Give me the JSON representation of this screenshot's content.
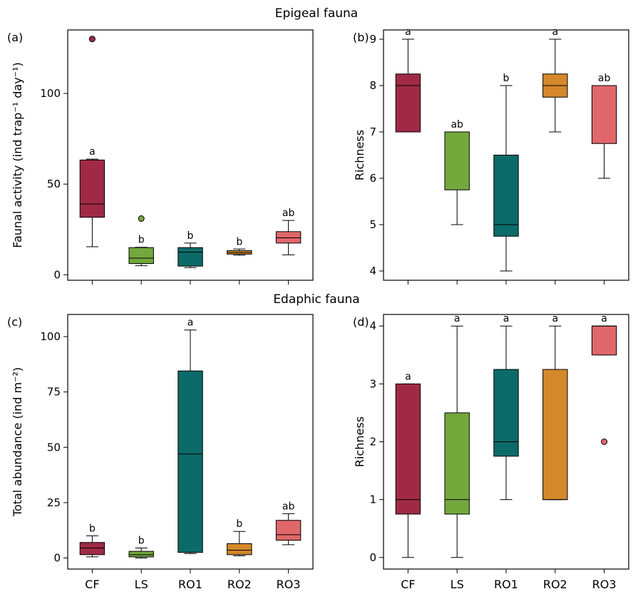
{
  "sections": {
    "epigeal_title": "Epigeal fauna",
    "edaphic_title": "Edaphic fauna"
  },
  "categories": [
    "CF",
    "LS",
    "RO1",
    "RO2",
    "RO3"
  ],
  "colors": {
    "CF": "#a02a45",
    "LS": "#73a83d",
    "RO1": "#0b6b68",
    "RO2": "#d4882a",
    "RO3": "#e0676a"
  },
  "chart_data": [
    {
      "type": "box",
      "panel_label": "(a)",
      "ylabel": "Faunal activity (ind trap⁻¹ day⁻¹)",
      "ylim": [
        -3,
        135
      ],
      "yticks": [
        0,
        50,
        100
      ],
      "categories": [
        "CF",
        "LS",
        "RO1",
        "RO2",
        "RO3"
      ],
      "boxes": [
        {
          "cat": "CF",
          "whisker_low": 15.5,
          "q1": 31.7,
          "median": 39,
          "q3": 63.3,
          "whisker_high": 63.8,
          "outliers": [
            130
          ],
          "letter": "a"
        },
        {
          "cat": "LS",
          "whisker_low": 5,
          "q1": 6.2,
          "median": 9.2,
          "q3": 15,
          "whisker_high": 15.2,
          "outliers": [
            31
          ],
          "letter": "b"
        },
        {
          "cat": "RO1",
          "whisker_low": 4,
          "q1": 4.8,
          "median": 12.5,
          "q3": 15,
          "whisker_high": 17.5,
          "outliers": [],
          "letter": "b"
        },
        {
          "cat": "RO2",
          "whisker_low": 10.8,
          "q1": 11.4,
          "median": 12.3,
          "q3": 13.3,
          "whisker_high": 14.2,
          "outliers": [],
          "letter": "b"
        },
        {
          "cat": "RO3",
          "whisker_low": 11,
          "q1": 17.5,
          "median": 20.4,
          "q3": 23.8,
          "whisker_high": 30,
          "outliers": [],
          "letter": "ab"
        }
      ]
    },
    {
      "type": "box",
      "panel_label": "(b)",
      "ylabel": "Richness",
      "ylim": [
        3.8,
        9.2
      ],
      "yticks": [
        4,
        5,
        6,
        7,
        8,
        9
      ],
      "categories": [
        "CF",
        "LS",
        "RO1",
        "RO2",
        "RO3"
      ],
      "boxes": [
        {
          "cat": "CF",
          "whisker_low": 7,
          "q1": 7,
          "median": 8,
          "q3": 8.25,
          "whisker_high": 9,
          "outliers": [],
          "letter": "a"
        },
        {
          "cat": "LS",
          "whisker_low": 5,
          "q1": 5.75,
          "median": 7,
          "q3": 7,
          "whisker_high": 7,
          "outliers": [],
          "letter": "ab"
        },
        {
          "cat": "RO1",
          "whisker_low": 4,
          "q1": 4.75,
          "median": 5,
          "q3": 6.5,
          "whisker_high": 8,
          "outliers": [],
          "letter": "b"
        },
        {
          "cat": "RO2",
          "whisker_low": 7,
          "q1": 7.75,
          "median": 8,
          "q3": 8.25,
          "whisker_high": 9,
          "outliers": [],
          "letter": "a"
        },
        {
          "cat": "RO3",
          "whisker_low": 6,
          "q1": 6.75,
          "median": 8,
          "q3": 8,
          "whisker_high": 8,
          "outliers": [],
          "letter": "ab"
        }
      ]
    },
    {
      "type": "box",
      "panel_label": "(c)",
      "ylabel": "Total abundance (ind m⁻²)",
      "ylim": [
        -5,
        110
      ],
      "yticks": [
        0,
        25,
        50,
        75,
        100
      ],
      "categories": [
        "CF",
        "LS",
        "RO1",
        "RO2",
        "RO3"
      ],
      "boxes": [
        {
          "cat": "CF",
          "whisker_low": 0.5,
          "q1": 1.5,
          "median": 4.5,
          "q3": 7,
          "whisker_high": 10,
          "outliers": [],
          "letter": "b"
        },
        {
          "cat": "LS",
          "whisker_low": 0,
          "q1": 0.5,
          "median": 1.5,
          "q3": 3,
          "whisker_high": 4.5,
          "outliers": [],
          "letter": "b"
        },
        {
          "cat": "RO1",
          "whisker_low": 2,
          "q1": 2.5,
          "median": 47,
          "q3": 84.5,
          "whisker_high": 103,
          "outliers": [],
          "letter": "a"
        },
        {
          "cat": "RO2",
          "whisker_low": 1,
          "q1": 1.5,
          "median": 3.5,
          "q3": 6.5,
          "whisker_high": 12,
          "outliers": [],
          "letter": "b"
        },
        {
          "cat": "RO3",
          "whisker_low": 6,
          "q1": 8,
          "median": 10.5,
          "q3": 17,
          "whisker_high": 20,
          "outliers": [],
          "letter": "ab"
        }
      ]
    },
    {
      "type": "box",
      "panel_label": "(d)",
      "ylabel": "Richness",
      "ylim": [
        -0.2,
        4.2
      ],
      "yticks": [
        0,
        1,
        2,
        3,
        4
      ],
      "categories": [
        "CF",
        "LS",
        "RO1",
        "RO2",
        "RO3"
      ],
      "boxes": [
        {
          "cat": "CF",
          "whisker_low": 0,
          "q1": 0.75,
          "median": 1,
          "q3": 3,
          "whisker_high": 3,
          "outliers": [],
          "letter": "a"
        },
        {
          "cat": "LS",
          "whisker_low": 0,
          "q1": 0.75,
          "median": 1,
          "q3": 2.5,
          "whisker_high": 4,
          "outliers": [],
          "letter": "a"
        },
        {
          "cat": "RO1",
          "whisker_low": 1,
          "q1": 1.75,
          "median": 2,
          "q3": 3.25,
          "whisker_high": 4,
          "outliers": [],
          "letter": "a"
        },
        {
          "cat": "RO2",
          "whisker_low": 1,
          "q1": 1,
          "median": 1,
          "q3": 3.25,
          "whisker_high": 4,
          "outliers": [],
          "letter": "a"
        },
        {
          "cat": "RO3",
          "whisker_low": 3.5,
          "q1": 3.5,
          "median": 4,
          "q3": 4,
          "whisker_high": 4,
          "outliers": [
            2
          ],
          "letter": "a"
        }
      ]
    }
  ]
}
